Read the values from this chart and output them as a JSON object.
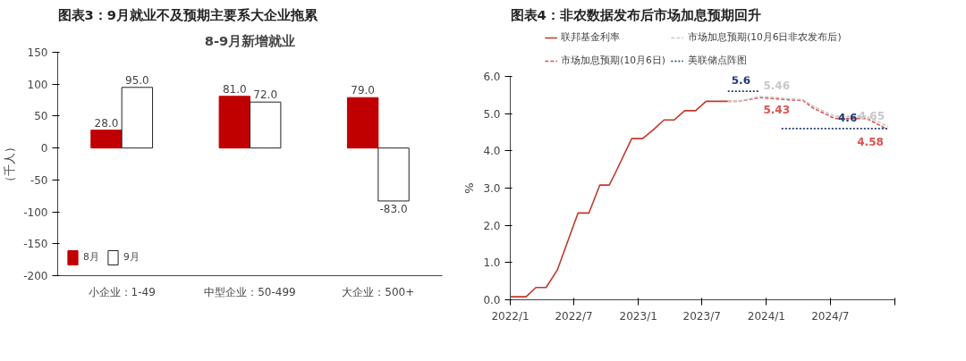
{
  "chart_data": [
    {
      "type": "bar",
      "title": "图表3：9月就业不及预期主要系大企业拖累",
      "subtitle": "8-9月新增就业",
      "ylabel": "（千人）",
      "categories": [
        "小企业：1-49",
        "中型企业：50-499",
        "大企业：500+"
      ],
      "series": [
        {
          "name": "8月",
          "color": "#c00000",
          "values": [
            28,
            81,
            79
          ],
          "value_labels": [
            "28.0",
            "81.0",
            "79.0"
          ]
        },
        {
          "name": "9月",
          "color": "#ffffff",
          "values": [
            95,
            72,
            -83
          ],
          "value_labels": [
            "95.0",
            "72.0",
            "-83.0"
          ]
        }
      ],
      "ylim": [
        -200,
        150
      ],
      "yticks": [
        -200,
        -150,
        -100,
        -50,
        0,
        50,
        100,
        150
      ],
      "grid": false,
      "legend": "bottom left"
    },
    {
      "type": "line",
      "title": "图表4：非农数据发布后市场加息预期回升",
      "ylabel": "%",
      "series": [
        {
          "name": "联邦基金利率",
          "color": "#c0392b",
          "line_style": "solid",
          "x": [
            "2022-01-01",
            "2022-02-15",
            "2022-03-15",
            "2022-04-13",
            "2022-05-15",
            "2022-07-13",
            "2022-08-13",
            "2022-09-13",
            "2022-10-10",
            "2022-10-28",
            "2022-12-13",
            "2023-01-13",
            "2023-02-13",
            "2023-03-15",
            "2023-04-13",
            "2023-05-13",
            "2023-06-13",
            "2023-07-13",
            "2023-09-13"
          ],
          "values": [
            0.08,
            0.08,
            0.33,
            0.33,
            0.8,
            2.33,
            2.33,
            3.08,
            3.08,
            3.42,
            4.33,
            4.33,
            4.57,
            4.83,
            4.83,
            5.08,
            5.08,
            5.33,
            5.33
          ]
        },
        {
          "name": "市场加息预期(10月6日)",
          "color": "#d9534f",
          "line_style": "dashed",
          "x": [
            "2023-09-13",
            "2023-10-13",
            "2023-12-13",
            "2024-01-28",
            "2024-03-04",
            "2024-04-13",
            "2024-05-13",
            "2024-07-13",
            "2024-10-13",
            "2024-12-10"
          ],
          "values": [
            5.33,
            5.33,
            5.43,
            5.4,
            5.37,
            5.36,
            5.15,
            4.87,
            4.87,
            4.58
          ]
        },
        {
          "name": "市场加息预期(10月6日非农发布后)",
          "color": "#c8c8c8",
          "line_style": "dashed",
          "x": [
            "2023-09-13",
            "2023-10-13",
            "2023-12-13",
            "2024-01-28",
            "2024-03-04",
            "2024-04-13",
            "2024-05-13",
            "2024-07-13",
            "2024-10-13",
            "2024-12-13"
          ],
          "values": [
            5.33,
            5.33,
            5.46,
            5.43,
            5.4,
            5.38,
            5.2,
            4.93,
            4.93,
            4.65
          ]
        },
        {
          "name": "美联储点阵图",
          "color": "#1f3a7a",
          "line_style": "dotted",
          "x": [
            "2023-09-13",
            "2023-12-13",
            "2024-01-01",
            "2024-02-13",
            "2024-12-13"
          ],
          "values": [
            5.6,
            5.6,
            null,
            4.6,
            4.6
          ]
        }
      ],
      "xlim": [
        "2022-01-01",
        "2025-01-01"
      ],
      "xticks": [
        {
          "value": "2022-01-01",
          "label": "2022/1"
        },
        {
          "value": "2022-07-01",
          "label": "2022/7"
        },
        {
          "value": "2023-01-01",
          "label": "2023/1"
        },
        {
          "value": "2023-07-01",
          "label": "2023/7"
        },
        {
          "value": "2024-01-01",
          "label": "2024/1"
        },
        {
          "value": "2024-07-01",
          "label": "2024/7"
        },
        {
          "value": "2025-01-01",
          "label": null
        }
      ],
      "ylim": [
        0,
        6
      ],
      "yticks": [
        {
          "value": 0,
          "label": "0.0"
        },
        {
          "value": 1,
          "label": "1.0"
        },
        {
          "value": 2,
          "label": "2.0"
        },
        {
          "value": 3,
          "label": "3.0"
        },
        {
          "value": 4,
          "label": "4.0"
        },
        {
          "value": 5,
          "label": "5.0"
        },
        {
          "value": 6,
          "label": "6.0"
        }
      ],
      "annotations": [
        {
          "text": "5.6",
          "x": "2023-09-13",
          "y": 5.6
        },
        {
          "text": "5.46",
          "x": "2023-12-13",
          "y": 5.46
        },
        {
          "text": "5.43",
          "x": "2023-12-13",
          "y": 5.43
        },
        {
          "text": "4.6",
          "x": "2024-07-13",
          "y": 4.6
        },
        {
          "text": "4.65",
          "x": "2024-12-13",
          "y": 4.65
        },
        {
          "text": "4.58",
          "x": "2024-12-10",
          "y": 4.58
        }
      ],
      "grid": false,
      "legend": "top"
    }
  ]
}
